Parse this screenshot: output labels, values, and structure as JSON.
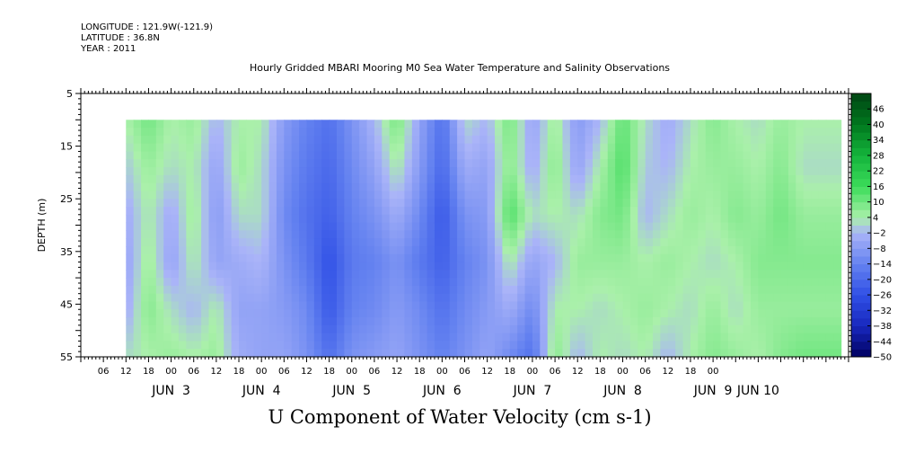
{
  "meta": {
    "longitude": "LONGITUDE : 121.9W(-121.9)",
    "latitude": "LATITUDE : 36.8N",
    "year": "YEAR : 2011"
  },
  "chart_data": {
    "type": "heatmap",
    "title": "Hourly Gridded MBARI Mooring M0 Sea Water Temperature and Salinity Observations",
    "subtitle": "U Component of Water Velocity (cm s-1)",
    "ylabel": "DEPTH (m)",
    "ylim": [
      5,
      55
    ],
    "y_inverted": true,
    "y_ticks": [
      5,
      15,
      25,
      35,
      45,
      55
    ],
    "xlim_hours": [
      -12,
      192
    ],
    "x_hour_ticks": [
      "06",
      "12",
      "18",
      "00",
      "06",
      "12",
      "18",
      "00",
      "06",
      "12",
      "18",
      "00",
      "06",
      "12",
      "18",
      "00",
      "06",
      "12",
      "18",
      "00",
      "06",
      "12",
      "18",
      "00",
      "06",
      "12",
      "18",
      "00"
    ],
    "x_day_labels": [
      "JUN  3",
      "JUN  4",
      "JUN  5",
      "JUN  6",
      "JUN  7",
      "JUN  8",
      "JUN  9",
      "JUN 10"
    ],
    "data_depth_range": [
      10,
      55
    ],
    "data_start_hour": 0,
    "colorbar": {
      "labels": [
        46,
        40,
        34,
        28,
        22,
        16,
        10,
        4,
        -2,
        -8,
        -14,
        -20,
        -26,
        -32,
        -38,
        -44,
        -50
      ],
      "range": [
        -50,
        52
      ]
    },
    "u_velocity_by_hour_profiles": [
      {
        "hour": 0,
        "values": [
          4,
          0,
          -4,
          -6,
          -4,
          2
        ]
      },
      {
        "hour": 6,
        "values": [
          10,
          6,
          4,
          6,
          8,
          4
        ]
      },
      {
        "hour": 12,
        "values": [
          4,
          2,
          -4,
          -6,
          2,
          6
        ]
      },
      {
        "hour": 18,
        "values": [
          6,
          4,
          6,
          4,
          -2,
          4
        ]
      },
      {
        "hour": 24,
        "values": [
          -2,
          -6,
          -8,
          -6,
          4,
          6
        ]
      },
      {
        "hour": 30,
        "values": [
          4,
          6,
          2,
          -4,
          -6,
          -4
        ]
      },
      {
        "hour": 36,
        "values": [
          4,
          2,
          2,
          -2,
          -6,
          -6
        ]
      },
      {
        "hour": 42,
        "values": [
          -8,
          -10,
          -12,
          -10,
          -8,
          -6
        ]
      },
      {
        "hour": 48,
        "values": [
          -14,
          -16,
          -18,
          -16,
          -12,
          -10
        ]
      },
      {
        "hour": 54,
        "values": [
          -18,
          -20,
          -22,
          -26,
          -24,
          -18
        ]
      },
      {
        "hour": 60,
        "values": [
          -10,
          -12,
          -14,
          -16,
          -14,
          -10
        ]
      },
      {
        "hour": 66,
        "values": [
          -2,
          -6,
          -10,
          -14,
          -12,
          -8
        ]
      },
      {
        "hour": 72,
        "values": [
          10,
          4,
          -4,
          -10,
          -8,
          -6
        ]
      },
      {
        "hour": 78,
        "values": [
          -6,
          -8,
          -12,
          -16,
          -12,
          -10
        ]
      },
      {
        "hour": 84,
        "values": [
          -18,
          -20,
          -24,
          -22,
          -18,
          -14
        ]
      },
      {
        "hour": 90,
        "values": [
          2,
          -4,
          -10,
          -14,
          -12,
          -10
        ]
      },
      {
        "hour": 96,
        "values": [
          -2,
          -6,
          -8,
          -10,
          -8,
          -6
        ]
      },
      {
        "hour": 102,
        "values": [
          10,
          8,
          14,
          4,
          -4,
          -12
        ]
      },
      {
        "hour": 108,
        "values": [
          -6,
          -4,
          2,
          -6,
          -12,
          -18
        ]
      },
      {
        "hour": 114,
        "values": [
          6,
          8,
          4,
          -2,
          4,
          8
        ]
      },
      {
        "hour": 120,
        "values": [
          -8,
          -6,
          2,
          6,
          4,
          -2
        ]
      },
      {
        "hour": 126,
        "values": [
          -2,
          4,
          8,
          6,
          2,
          4
        ]
      },
      {
        "hour": 132,
        "values": [
          12,
          14,
          10,
          6,
          4,
          2
        ]
      },
      {
        "hour": 138,
        "values": [
          2,
          0,
          -2,
          4,
          6,
          4
        ]
      },
      {
        "hour": 144,
        "values": [
          -4,
          -2,
          2,
          6,
          4,
          -2
        ]
      },
      {
        "hour": 150,
        "values": [
          2,
          4,
          6,
          4,
          2,
          4
        ]
      },
      {
        "hour": 156,
        "values": [
          8,
          6,
          4,
          2,
          6,
          8
        ]
      },
      {
        "hour": 162,
        "values": [
          4,
          6,
          8,
          4,
          2,
          6
        ]
      },
      {
        "hour": 168,
        "values": [
          2,
          4,
          6,
          8,
          6,
          4
        ]
      },
      {
        "hour": 174,
        "values": [
          6,
          8,
          10,
          8,
          6,
          8
        ]
      },
      {
        "hour": 180,
        "values": [
          4,
          2,
          6,
          8,
          6,
          10
        ]
      }
    ],
    "profile_depths": [
      10,
      19,
      28,
      37,
      46,
      55
    ]
  }
}
